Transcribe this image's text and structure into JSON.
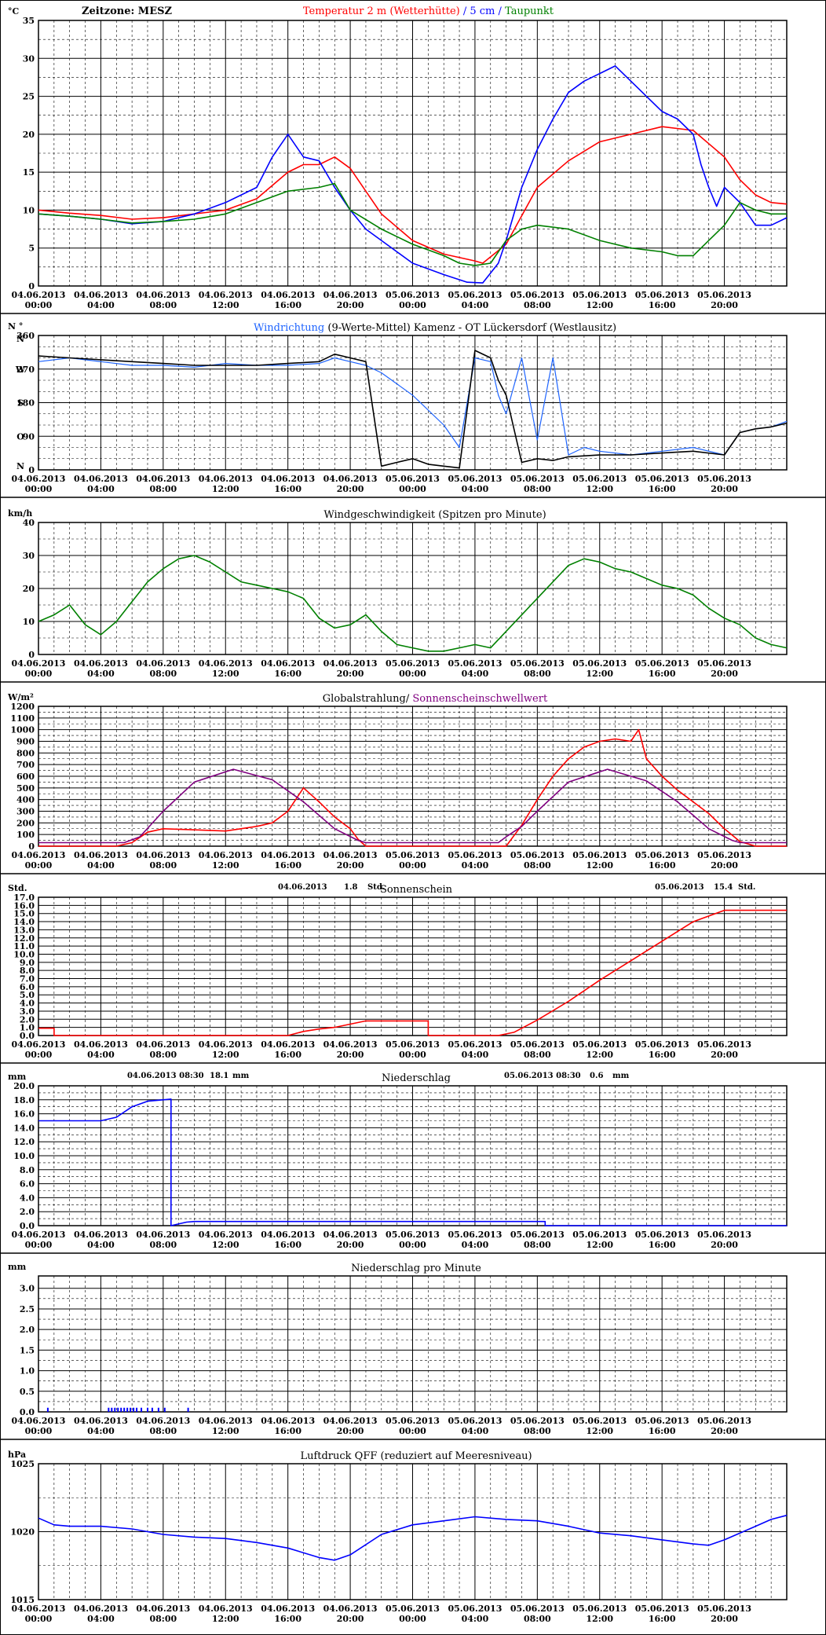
{
  "meta": {
    "x_tick_labels": [
      [
        "04.06.2013",
        "00:00"
      ],
      [
        "04.06.2013",
        "04:00"
      ],
      [
        "04.06.2013",
        "08:00"
      ],
      [
        "04.06.2013",
        "12:00"
      ],
      [
        "04.06.2013",
        "16:00"
      ],
      [
        "04.06.2013",
        "20:00"
      ],
      [
        "05.06.2013",
        "00:00"
      ],
      [
        "05.06.2013",
        "04:00"
      ],
      [
        "05.06.2013",
        "08:00"
      ],
      [
        "05.06.2013",
        "12:00"
      ],
      [
        "05.06.2013",
        "16:00"
      ],
      [
        "05.06.2013",
        "20:00"
      ]
    ],
    "x_unit": "hours since 04.06.2013 00:00",
    "x_range": [
      0,
      48
    ]
  },
  "chart_data": [
    {
      "id": "temperature",
      "type": "line",
      "unit_label": "°C",
      "timezone_label": "Zeitzone: MESZ",
      "title_parts": [
        {
          "text": "Temperatur 2 m (Wetterhütte)",
          "color": "#ff0000"
        },
        {
          "text": "  /  ",
          "color": "#0000ff"
        },
        {
          "text": "5 cm",
          "color": "#0000ff"
        },
        {
          "text": " / ",
          "color": "#0000ff"
        },
        {
          "text": "Taupunkt",
          "color": "#008000"
        }
      ],
      "ylim": [
        0,
        35
      ],
      "yticks": [
        0,
        5,
        10,
        15,
        20,
        25,
        30,
        35
      ],
      "series": [
        {
          "name": "Temperatur 2 m (Wetterhütte)",
          "color": "#ff0000",
          "x": [
            0,
            2,
            4,
            6,
            8,
            10,
            12,
            14,
            16,
            17,
            18,
            19,
            20,
            21,
            22,
            24,
            26,
            28,
            28.5,
            30,
            32,
            34,
            36,
            38,
            40,
            42,
            44,
            45,
            46,
            47,
            48
          ],
          "y": [
            10,
            9.6,
            9.3,
            8.8,
            9,
            9.5,
            10,
            11.5,
            15,
            16,
            16,
            17,
            15.5,
            12.5,
            9.5,
            6,
            4.2,
            3.3,
            3,
            5.5,
            13,
            16.5,
            19,
            20,
            21,
            20.5,
            17,
            14,
            12,
            11,
            10.8
          ]
        },
        {
          "name": "5 cm",
          "color": "#0000ff",
          "x": [
            0,
            2,
            4,
            6,
            8,
            10,
            12,
            14,
            15,
            16,
            17,
            18,
            19,
            20,
            21,
            22,
            24,
            26,
            27.5,
            28.5,
            29.5,
            30,
            31,
            32,
            33,
            34,
            35,
            36,
            37,
            38,
            39,
            40,
            41,
            42,
            42.5,
            43,
            43.5,
            44,
            44.5,
            45,
            46,
            47,
            48
          ],
          "y": [
            9.5,
            9.2,
            8.8,
            8.2,
            8.5,
            9.5,
            11,
            13,
            17,
            20,
            17,
            16.5,
            13,
            10,
            7.5,
            6,
            3,
            1.5,
            0.5,
            0.4,
            3,
            6,
            13,
            18,
            22,
            25.5,
            27,
            28,
            29,
            27,
            25,
            23,
            22,
            20,
            16,
            13,
            10.5,
            13,
            12,
            11,
            8,
            8,
            9
          ]
        },
        {
          "name": "Taupunkt",
          "color": "#008000",
          "x": [
            0,
            2,
            4,
            6,
            8,
            10,
            12,
            14,
            16,
            18,
            19,
            20,
            22,
            24,
            26,
            27,
            28,
            29,
            30,
            31,
            32,
            34,
            36,
            38,
            40,
            41,
            42,
            43,
            44,
            45,
            46,
            47,
            48
          ],
          "y": [
            9.5,
            9.2,
            8.8,
            8.3,
            8.5,
            8.8,
            9.5,
            11,
            12.5,
            13,
            13.5,
            10,
            7.5,
            5.5,
            4,
            3,
            2.7,
            3,
            6,
            7.5,
            8,
            7.5,
            6,
            5,
            4.5,
            4,
            4,
            6,
            8,
            11,
            10,
            9.5,
            9.5
          ]
        }
      ]
    },
    {
      "id": "wind_direction",
      "type": "line",
      "title_parts": [
        {
          "text": "Windrichtung",
          "color": "#1e64ff"
        },
        {
          "text": " (9-Werte-Mittel)",
          "color": "#000000"
        },
        {
          "text": "        Kamenz - OT Lückersdorf (Westlausitz)",
          "color": "#000000"
        }
      ],
      "unit_label": "N °",
      "ylim": [
        0,
        360
      ],
      "yticks": [
        0,
        90,
        180,
        270,
        360
      ],
      "compass_labels": [
        {
          "text": "N",
          "value": 360
        },
        {
          "text": "W",
          "value": 270
        },
        {
          "text": "S",
          "value": 180
        },
        {
          "text": "O",
          "value": 90
        },
        {
          "text": "N",
          "value": 0
        }
      ],
      "series": [
        {
          "name": "Windrichtung",
          "color": "#1e64ff",
          "x": [
            0,
            2,
            4,
            6,
            8,
            10,
            12,
            14,
            16,
            18,
            19,
            20,
            21,
            22,
            24,
            26,
            27,
            28,
            29,
            29.5,
            30,
            31,
            32,
            33,
            34,
            35,
            36,
            38,
            40,
            42,
            44,
            45,
            46,
            47,
            48
          ],
          "y": [
            290,
            300,
            290,
            280,
            280,
            275,
            285,
            280,
            280,
            285,
            300,
            290,
            280,
            260,
            200,
            120,
            60,
            300,
            290,
            200,
            150,
            300,
            80,
            300,
            40,
            60,
            50,
            40,
            50,
            60,
            40,
            100,
            110,
            115,
            130
          ]
        },
        {
          "name": "9-Werte-Mittel",
          "color": "#000000",
          "x": [
            0,
            2,
            4,
            6,
            8,
            10,
            12,
            14,
            16,
            18,
            19,
            20,
            21,
            22,
            23,
            24,
            25,
            26,
            27,
            28,
            29,
            29.5,
            30,
            31,
            32,
            33,
            34,
            36,
            38,
            40,
            42,
            44,
            45,
            46,
            47,
            48
          ],
          "y": [
            305,
            300,
            295,
            290,
            285,
            280,
            280,
            280,
            285,
            290,
            310,
            300,
            290,
            10,
            20,
            30,
            15,
            10,
            5,
            320,
            300,
            240,
            200,
            20,
            30,
            25,
            35,
            40,
            40,
            45,
            50,
            40,
            100,
            110,
            115,
            125
          ]
        }
      ]
    },
    {
      "id": "wind_speed",
      "type": "line",
      "unit_label": "km/h",
      "title_parts": [
        {
          "text": "Windgeschwindigkeit (Spitzen pro Minute)",
          "color": "#000000"
        }
      ],
      "ylim": [
        0,
        40
      ],
      "yticks": [
        0,
        10,
        20,
        30,
        40
      ],
      "series": [
        {
          "name": "Windgeschwindigkeit",
          "color": "#008000",
          "x": [
            0,
            1,
            2,
            3,
            4,
            5,
            6,
            7,
            8,
            9,
            10,
            11,
            12,
            13,
            14,
            15,
            16,
            17,
            18,
            19,
            20,
            21,
            22,
            23,
            24,
            25,
            26,
            27,
            28,
            29,
            30,
            31,
            32,
            33,
            34,
            35,
            36,
            37,
            38,
            39,
            40,
            41,
            42,
            43,
            44,
            45,
            46,
            47,
            48
          ],
          "y": [
            10,
            12,
            15,
            9,
            6,
            10,
            16,
            22,
            26,
            29,
            30,
            28,
            25,
            22,
            21,
            20,
            19,
            17,
            11,
            8,
            9,
            12,
            7,
            3,
            2,
            1,
            1,
            2,
            3,
            2,
            7,
            12,
            17,
            22,
            27,
            29,
            28,
            26,
            25,
            23,
            21,
            20,
            18,
            14,
            11,
            9,
            5,
            3,
            2
          ]
        }
      ]
    },
    {
      "id": "radiation",
      "type": "line",
      "unit_label": "W/m²",
      "title_parts": [
        {
          "text": "Globalstrahlung/ ",
          "color": "#000000"
        },
        {
          "text": "Sonnenscheinschwellwert",
          "color": "#800080"
        }
      ],
      "ylim": [
        0,
        1200
      ],
      "yticks": [
        0,
        100,
        200,
        300,
        400,
        500,
        600,
        700,
        800,
        900,
        1000,
        1100,
        1200
      ],
      "series": [
        {
          "name": "Globalstrahlung",
          "color": "#ff0000",
          "x": [
            0,
            5,
            6,
            7,
            8,
            10,
            12,
            14,
            15,
            16,
            17,
            18,
            19,
            20,
            20.5,
            21,
            30,
            31,
            32,
            33,
            34,
            35,
            36,
            37,
            38,
            38.5,
            39,
            40,
            41,
            42,
            43,
            44,
            45,
            46,
            47,
            48
          ],
          "y": [
            0,
            0,
            30,
            120,
            150,
            140,
            130,
            170,
            200,
            300,
            500,
            380,
            250,
            150,
            60,
            0,
            0,
            180,
            400,
            600,
            750,
            850,
            900,
            920,
            900,
            1000,
            750,
            600,
            480,
            380,
            280,
            150,
            40,
            0,
            0,
            0
          ]
        },
        {
          "name": "Sonnenscheinschwellwert",
          "color": "#800080",
          "x": [
            0,
            5.5,
            6.5,
            8,
            10,
            12.5,
            15,
            17,
            19,
            20.5,
            21,
            29,
            29.5,
            30,
            31,
            32,
            34,
            36.5,
            39,
            41,
            43,
            44.5,
            45,
            48
          ],
          "y": [
            30,
            30,
            80,
            300,
            550,
            660,
            570,
            380,
            150,
            50,
            30,
            30,
            30,
            80,
            170,
            300,
            550,
            660,
            560,
            380,
            150,
            50,
            30,
            30
          ]
        }
      ]
    },
    {
      "id": "sunshine",
      "type": "line",
      "unit_label": "Std.",
      "title_parts": [
        {
          "text": "Sonnenschein",
          "color": "#000000"
        }
      ],
      "day_stats": [
        {
          "date": "04.06.2013",
          "value": "1.8",
          "unit": "Std."
        },
        {
          "date": "05.06.2013",
          "value": "15.4",
          "unit": "Std."
        }
      ],
      "ylim": [
        0,
        17
      ],
      "yticks": [
        0,
        1,
        2,
        3,
        4,
        5,
        6,
        7,
        8,
        9,
        10,
        11,
        12,
        13,
        14,
        15,
        16,
        17
      ],
      "series": [
        {
          "name": "Sonnenschein",
          "color": "#ff0000",
          "x": [
            0,
            1,
            1,
            16,
            17,
            18,
            19,
            21,
            25,
            25,
            29.5,
            30.5,
            32,
            34,
            36,
            38,
            40,
            42,
            44,
            45,
            48
          ],
          "y": [
            0.9,
            0.9,
            0,
            0,
            0.5,
            0.8,
            1,
            1.8,
            1.8,
            0,
            0,
            0.4,
            1.9,
            4.2,
            6.8,
            9.2,
            11.6,
            14,
            15.4,
            15.4,
            15.4
          ]
        }
      ]
    },
    {
      "id": "precip_daily",
      "type": "line",
      "unit_label": "mm",
      "title_parts": [
        {
          "text": "Niederschlag",
          "color": "#000000"
        }
      ],
      "day_stats": [
        {
          "date": "04.06.2013 08:30",
          "value": "18.1",
          "unit": "mm"
        },
        {
          "date": "05.06.2013 08:30",
          "value": "0.6",
          "unit": "mm"
        }
      ],
      "ylim": [
        0,
        20
      ],
      "yticks": [
        0,
        2,
        4,
        6,
        8,
        10,
        12,
        14,
        16,
        18,
        20
      ],
      "series": [
        {
          "name": "Niederschlag",
          "color": "#0000ff",
          "x": [
            0,
            4,
            5,
            6,
            7,
            8.5,
            8.5,
            9.5,
            10,
            32.5,
            32.5,
            48
          ],
          "y": [
            15,
            15,
            15.5,
            17,
            17.8,
            18.1,
            0,
            0.5,
            0.6,
            0.6,
            0,
            0
          ]
        }
      ]
    },
    {
      "id": "precip_minute",
      "type": "bar",
      "unit_label": "mm",
      "title_parts": [
        {
          "text": "Niederschlag pro Minute",
          "color": "#000000"
        }
      ],
      "ylim": [
        0,
        3.3
      ],
      "yticks": [
        0,
        0.5,
        1.0,
        1.5,
        2.0,
        2.5,
        3.0
      ],
      "ytick_labels": [
        "0.0",
        "0.5",
        "1.0",
        "1.5",
        "2.0",
        "2.5",
        "3.0"
      ],
      "series": [
        {
          "name": "Niederschlag pro Minute",
          "color": "#0000ff",
          "x": [
            0.6,
            4.5,
            4.7,
            4.9,
            5.1,
            5.3,
            5.5,
            5.7,
            5.9,
            6.1,
            6.3,
            6.6,
            7.0,
            7.3,
            7.7,
            8.1,
            9.6
          ],
          "y": [
            0.1,
            0.1,
            0.1,
            0.1,
            0.1,
            0.1,
            0.1,
            0.1,
            0.1,
            0.1,
            0.1,
            0.1,
            0.1,
            0.1,
            0.1,
            0.1,
            0.1
          ]
        }
      ]
    },
    {
      "id": "pressure",
      "type": "line",
      "unit_label": "hPa",
      "title_parts": [
        {
          "text": "Luftdruck QFF (reduziert auf Meeresniveau)",
          "color": "#000000"
        }
      ],
      "ylim": [
        1015,
        1025
      ],
      "yticks": [
        1015,
        1020,
        1025
      ],
      "series": [
        {
          "name": "Luftdruck QFF",
          "color": "#0000ff",
          "x": [
            0,
            1,
            2,
            4,
            6,
            8,
            10,
            12,
            14,
            16,
            18,
            19,
            20,
            22,
            24,
            26,
            28,
            30,
            32,
            34,
            36,
            38,
            40,
            42,
            43,
            44,
            46,
            47,
            48
          ],
          "y": [
            1021,
            1020.5,
            1020.4,
            1020.4,
            1020.2,
            1019.8,
            1019.6,
            1019.5,
            1019.2,
            1018.8,
            1018.1,
            1017.9,
            1018.3,
            1019.8,
            1020.5,
            1020.8,
            1021.1,
            1020.9,
            1020.8,
            1020.4,
            1019.9,
            1019.7,
            1019.4,
            1019.1,
            1019.0,
            1019.4,
            1020.4,
            1020.9,
            1021.2
          ]
        }
      ]
    }
  ]
}
